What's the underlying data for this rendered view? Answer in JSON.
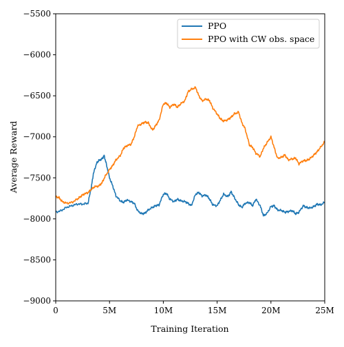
{
  "chart_data": {
    "type": "line",
    "title": "",
    "xlabel": "Training Iteration",
    "ylabel": "Average Reward",
    "xlim": [
      0,
      25000000
    ],
    "ylim": [
      -9000,
      -5500
    ],
    "x_ticks": [
      0,
      5000000,
      10000000,
      15000000,
      20000000,
      25000000
    ],
    "x_tick_labels": [
      "0",
      "5M",
      "10M",
      "15M",
      "20M",
      "25M"
    ],
    "y_ticks": [
      -9000,
      -8500,
      -8000,
      -7500,
      -7000,
      -6500,
      -6000,
      -5500
    ],
    "y_tick_labels": [
      "−9000",
      "−8500",
      "−8000",
      "−7500",
      "−7000",
      "−6500",
      "−6000",
      "−5500"
    ],
    "grid": false,
    "legend_position": "top-right",
    "series": [
      {
        "name": "PPO",
        "color": "#1f77b4",
        "x": [
          0,
          500000,
          1000000,
          1500000,
          2000000,
          2500000,
          3000000,
          3300000,
          3500000,
          3800000,
          4000000,
          4300000,
          4500000,
          4700000,
          5000000,
          5300000,
          5600000,
          6000000,
          6300000,
          6600000,
          7000000,
          7300000,
          7600000,
          8000000,
          8300000,
          8600000,
          9000000,
          9300000,
          9600000,
          10000000,
          10300000,
          10600000,
          11000000,
          11300000,
          11600000,
          12000000,
          12300000,
          12600000,
          13000000,
          13300000,
          13600000,
          14000000,
          14300000,
          14600000,
          15000000,
          15300000,
          15600000,
          16000000,
          16300000,
          16600000,
          17000000,
          17300000,
          17600000,
          18000000,
          18300000,
          18600000,
          19000000,
          19300000,
          19600000,
          20000000,
          20300000,
          20600000,
          21000000,
          21300000,
          21600000,
          22000000,
          22300000,
          22600000,
          23000000,
          23300000,
          23600000,
          24000000,
          24300000,
          24600000,
          25000000
        ],
        "values": [
          -7920,
          -7900,
          -7860,
          -7840,
          -7820,
          -7820,
          -7810,
          -7620,
          -7450,
          -7320,
          -7290,
          -7270,
          -7230,
          -7330,
          -7500,
          -7600,
          -7720,
          -7780,
          -7800,
          -7770,
          -7790,
          -7810,
          -7900,
          -7940,
          -7930,
          -7890,
          -7860,
          -7840,
          -7830,
          -7700,
          -7690,
          -7760,
          -7790,
          -7760,
          -7780,
          -7790,
          -7810,
          -7840,
          -7700,
          -7680,
          -7720,
          -7710,
          -7760,
          -7830,
          -7840,
          -7770,
          -7700,
          -7730,
          -7670,
          -7740,
          -7830,
          -7860,
          -7810,
          -7800,
          -7840,
          -7760,
          -7840,
          -7960,
          -7940,
          -7850,
          -7840,
          -7890,
          -7900,
          -7920,
          -7910,
          -7900,
          -7940,
          -7920,
          -7840,
          -7860,
          -7870,
          -7850,
          -7820,
          -7830,
          -7800
        ]
      },
      {
        "name": "PPO with CW obs. space",
        "color": "#ff7f0e",
        "x": [
          0,
          300000,
          600000,
          1000000,
          1500000,
          2000000,
          2300000,
          2600000,
          3000000,
          3300000,
          3600000,
          4000000,
          4300000,
          4600000,
          5000000,
          5300000,
          5600000,
          6000000,
          6300000,
          6600000,
          7000000,
          7300000,
          7600000,
          8000000,
          8300000,
          8600000,
          9000000,
          9300000,
          9600000,
          10000000,
          10300000,
          10600000,
          11000000,
          11300000,
          11600000,
          12000000,
          12300000,
          12600000,
          13000000,
          13300000,
          13600000,
          14000000,
          14300000,
          14600000,
          15000000,
          15300000,
          15600000,
          16000000,
          16300000,
          16600000,
          17000000,
          17300000,
          17600000,
          18000000,
          18300000,
          18600000,
          19000000,
          19300000,
          19600000,
          20000000,
          20300000,
          20600000,
          21000000,
          21300000,
          21600000,
          22000000,
          22300000,
          22600000,
          23000000,
          23300000,
          23600000,
          24000000,
          24300000,
          24600000,
          25000000
        ],
        "values": [
          -7730,
          -7740,
          -7790,
          -7810,
          -7800,
          -7760,
          -7730,
          -7700,
          -7680,
          -7640,
          -7610,
          -7600,
          -7560,
          -7480,
          -7400,
          -7350,
          -7280,
          -7230,
          -7140,
          -7110,
          -7090,
          -7000,
          -6870,
          -6840,
          -6820,
          -6830,
          -6920,
          -6860,
          -6800,
          -6600,
          -6590,
          -6640,
          -6600,
          -6640,
          -6600,
          -6560,
          -6450,
          -6420,
          -6400,
          -6500,
          -6560,
          -6540,
          -6560,
          -6650,
          -6720,
          -6780,
          -6810,
          -6790,
          -6760,
          -6720,
          -6700,
          -6830,
          -6900,
          -7100,
          -7130,
          -7200,
          -7240,
          -7140,
          -7080,
          -7000,
          -7130,
          -7260,
          -7250,
          -7220,
          -7280,
          -7270,
          -7260,
          -7330,
          -7290,
          -7290,
          -7270,
          -7220,
          -7180,
          -7130,
          -7060
        ]
      }
    ]
  }
}
